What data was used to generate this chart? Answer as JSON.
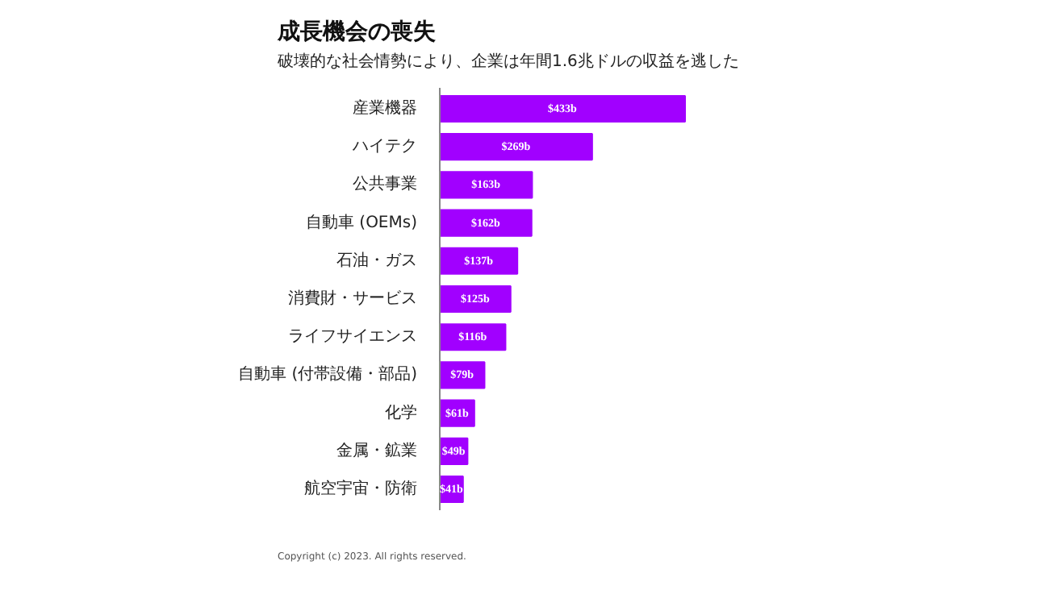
{
  "chart_data": {
    "type": "bar",
    "orientation": "horizontal",
    "title": "成長機会の喪失",
    "subtitle": "破壊的な社会情勢により、企業は年間1.6兆ドルの収益を逃した",
    "categories": [
      "産業機器",
      "ハイテク",
      "公共事業",
      "自動車 (OEMs)",
      "石油・ガス",
      "消費財・サービス",
      "ライフサイエンス",
      "自動車 (付帯設備・部品)",
      "化学",
      "金属・鉱業",
      "航空宇宙・防衛"
    ],
    "values": [
      433,
      269,
      163,
      162,
      137,
      125,
      116,
      79,
      61,
      49,
      41
    ],
    "value_labels": [
      "$433b",
      "$269b",
      "$163b",
      "$162b",
      "$137b",
      "$125b",
      "$116b",
      "$79b",
      "$61b",
      "$49b",
      "$41b"
    ],
    "color": "#a100ff",
    "grid": false,
    "annotations": [
      "Copyright (c) 2023. All rights reserved."
    ]
  }
}
